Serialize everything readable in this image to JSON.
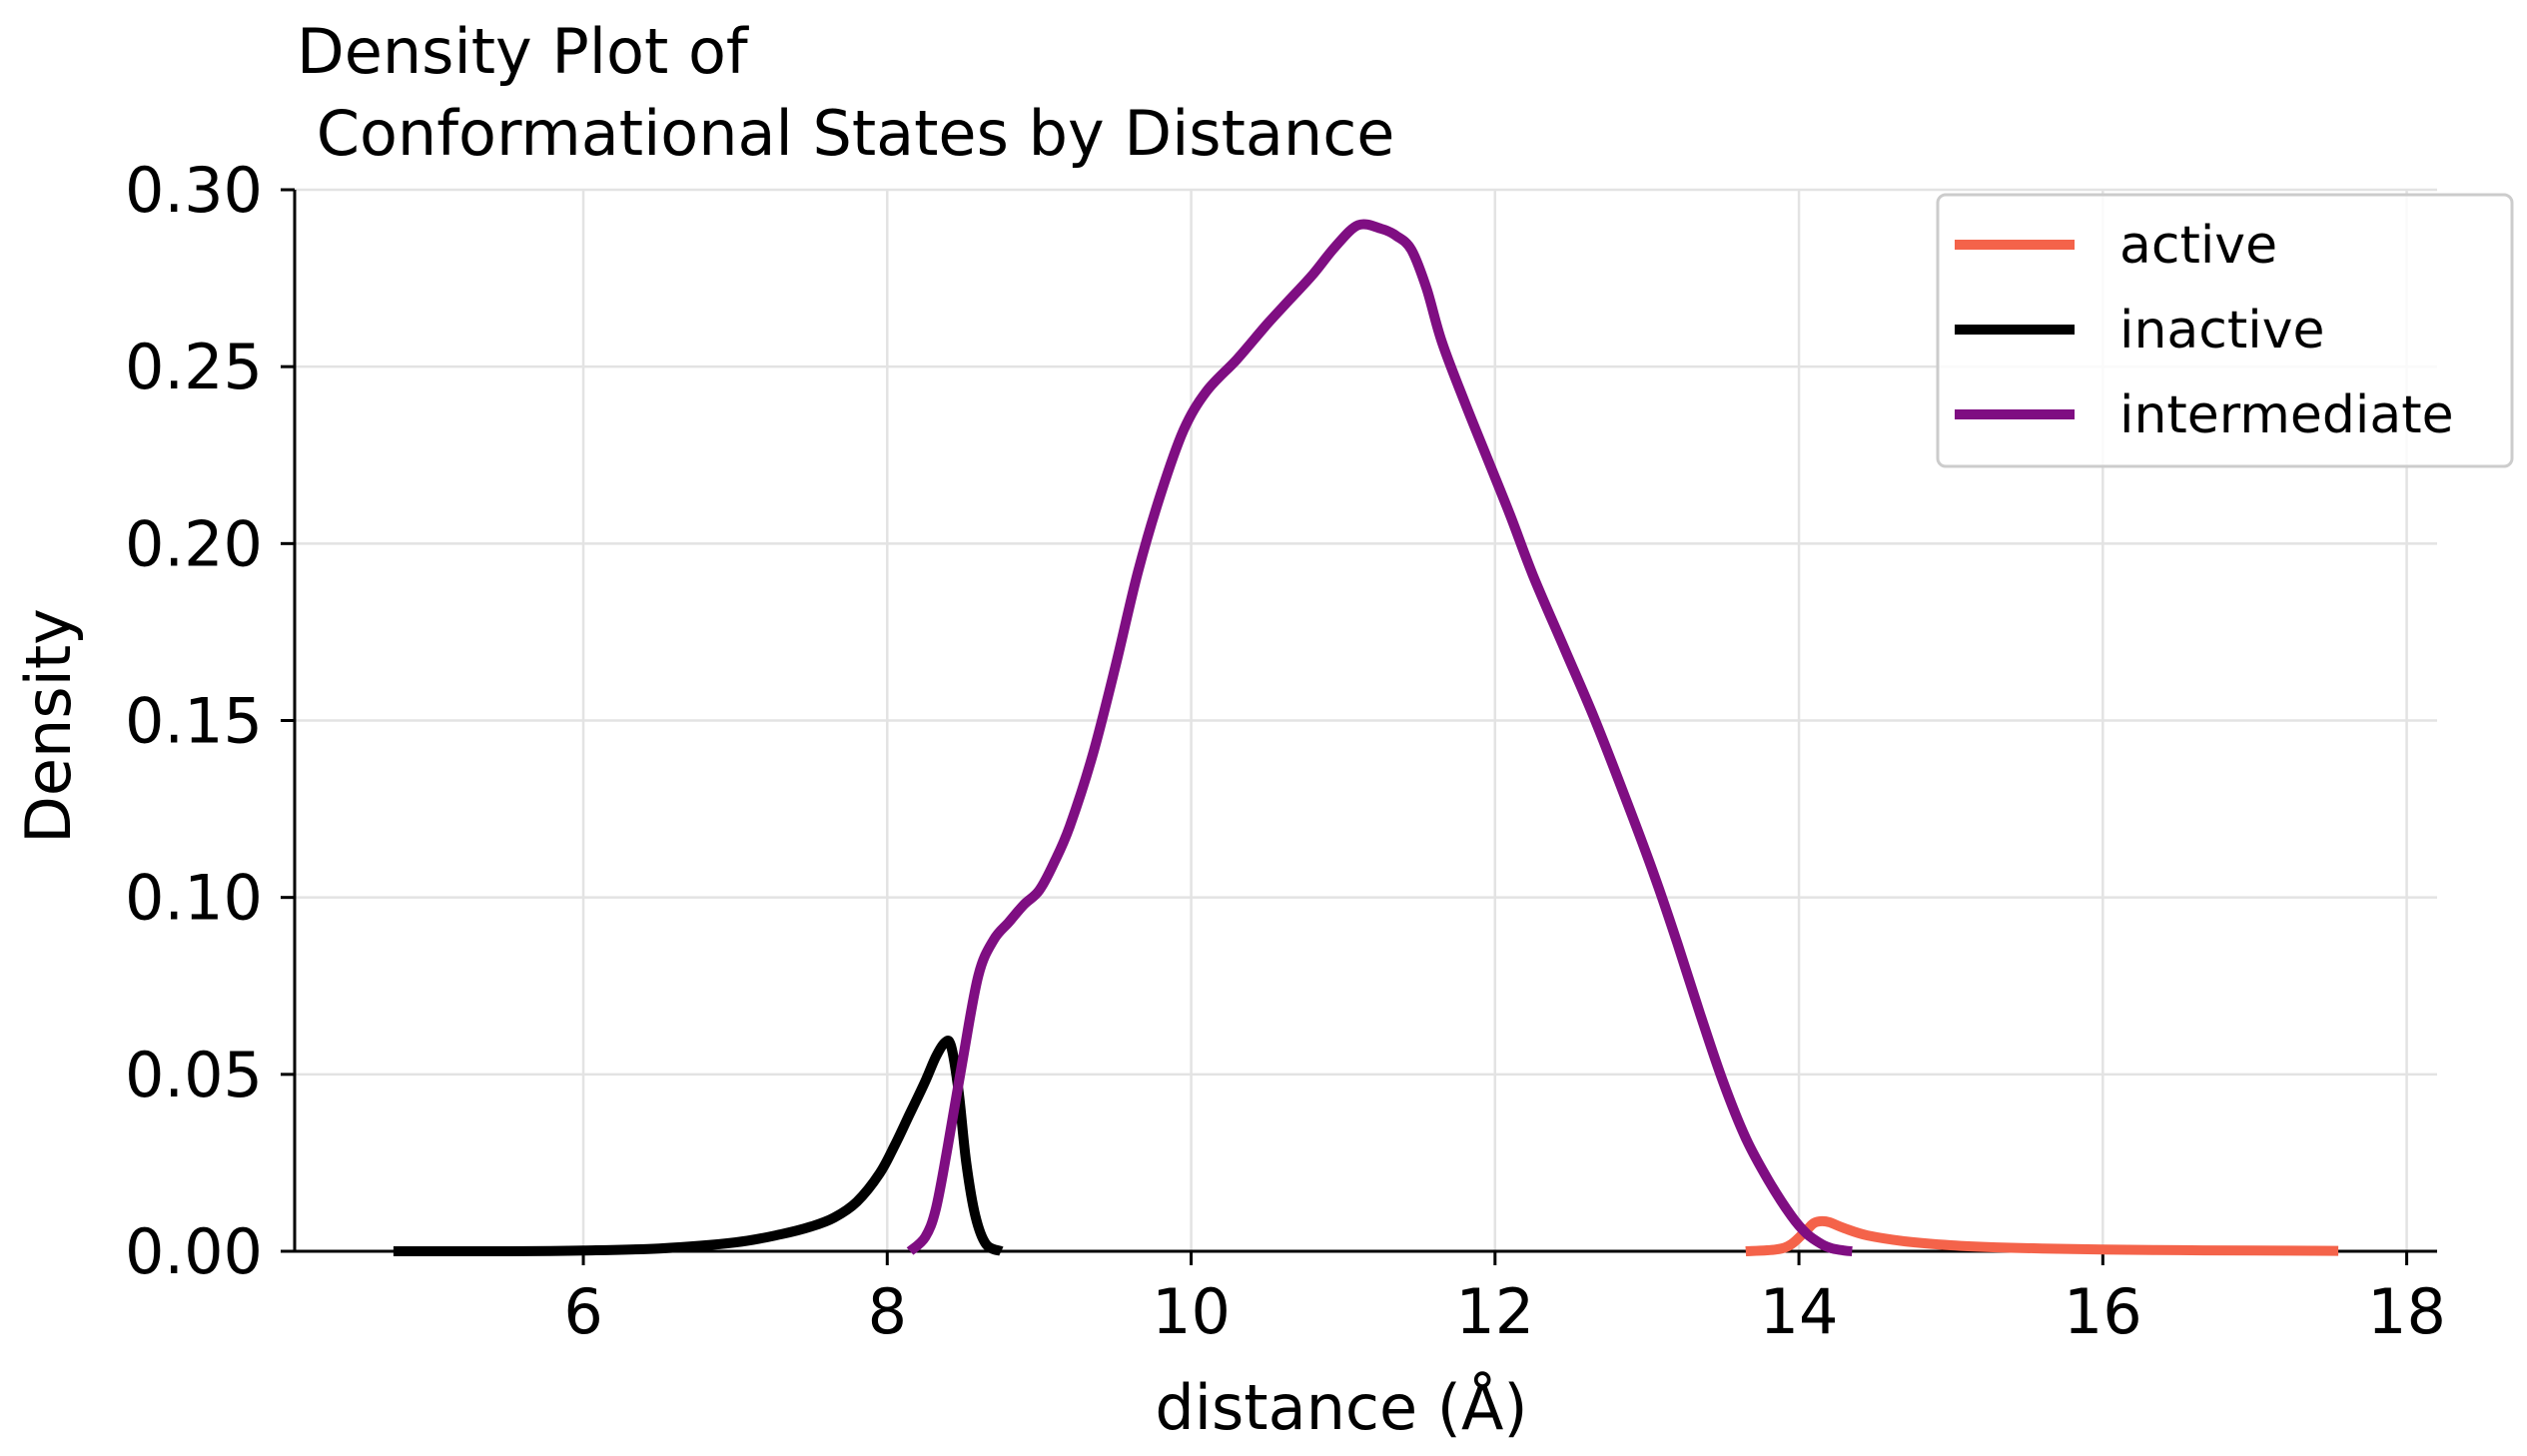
{
  "chart_data": {
    "type": "line",
    "title": "Density Plot of\n Conformational States by Distance",
    "title_lines": [
      "Density Plot of",
      " Conformational States by Distance"
    ],
    "xlabel": "distance (Å)",
    "ylabel": "Density",
    "xlim": [
      4.1,
      18.2
    ],
    "ylim": [
      0,
      0.3
    ],
    "xticks": [
      6,
      8,
      10,
      12,
      14,
      16,
      18
    ],
    "xtick_labels": [
      "6",
      "8",
      "10",
      "12",
      "14",
      "16",
      "18"
    ],
    "yticks": [
      0,
      0.05,
      0.1,
      0.15,
      0.2,
      0.25,
      0.3
    ],
    "ytick_labels": [
      "0.00",
      "0.05",
      "0.10",
      "0.15",
      "0.20",
      "0.25",
      "0.30"
    ],
    "grid": true,
    "legend_position": "top-right",
    "series": [
      {
        "name": "active",
        "color": "#f4634a",
        "x": [
          13.65,
          13.85,
          13.95,
          14.05,
          14.1,
          14.15,
          14.2,
          14.3,
          14.45,
          14.7,
          15.0,
          15.3,
          15.6,
          16.0,
          16.5,
          17.0,
          17.55
        ],
        "y": [
          0.0,
          0.0005,
          0.002,
          0.006,
          0.008,
          0.0085,
          0.0082,
          0.0065,
          0.0045,
          0.0028,
          0.0017,
          0.0011,
          0.0008,
          0.0005,
          0.0003,
          0.0002,
          0.0001
        ]
      },
      {
        "name": "inactive",
        "color": "#000000",
        "x": [
          4.75,
          5.5,
          6.0,
          6.5,
          7.0,
          7.3,
          7.5,
          7.65,
          7.8,
          7.95,
          8.05,
          8.15,
          8.25,
          8.32,
          8.38,
          8.42,
          8.47,
          8.52,
          8.58,
          8.65,
          8.75
        ],
        "y": [
          0.0,
          0.0,
          0.0002,
          0.0008,
          0.0025,
          0.0048,
          0.007,
          0.0095,
          0.014,
          0.022,
          0.03,
          0.039,
          0.048,
          0.055,
          0.059,
          0.058,
          0.045,
          0.025,
          0.01,
          0.002,
          0.0
        ]
      },
      {
        "name": "intermediate",
        "color": "#7f0e82",
        "x": [
          8.15,
          8.25,
          8.32,
          8.4,
          8.5,
          8.6,
          8.7,
          8.8,
          8.9,
          9.0,
          9.1,
          9.2,
          9.35,
          9.5,
          9.65,
          9.8,
          9.95,
          10.1,
          10.3,
          10.5,
          10.65,
          10.8,
          10.95,
          11.1,
          11.25,
          11.35,
          11.45,
          11.55,
          11.65,
          11.8,
          11.95,
          12.1,
          12.25,
          12.45,
          12.65,
          12.85,
          13.05,
          13.2,
          13.35,
          13.5,
          13.65,
          13.8,
          13.95,
          14.05,
          14.15,
          14.22,
          14.3,
          14.35
        ],
        "y": [
          0.0,
          0.004,
          0.012,
          0.03,
          0.055,
          0.078,
          0.088,
          0.093,
          0.098,
          0.102,
          0.11,
          0.12,
          0.14,
          0.165,
          0.192,
          0.214,
          0.232,
          0.243,
          0.252,
          0.262,
          0.269,
          0.276,
          0.284,
          0.29,
          0.289,
          0.287,
          0.283,
          0.272,
          0.257,
          0.24,
          0.224,
          0.208,
          0.191,
          0.171,
          0.151,
          0.129,
          0.106,
          0.087,
          0.067,
          0.048,
          0.032,
          0.02,
          0.01,
          0.005,
          0.002,
          0.0008,
          0.0002,
          0.0
        ]
      }
    ]
  }
}
